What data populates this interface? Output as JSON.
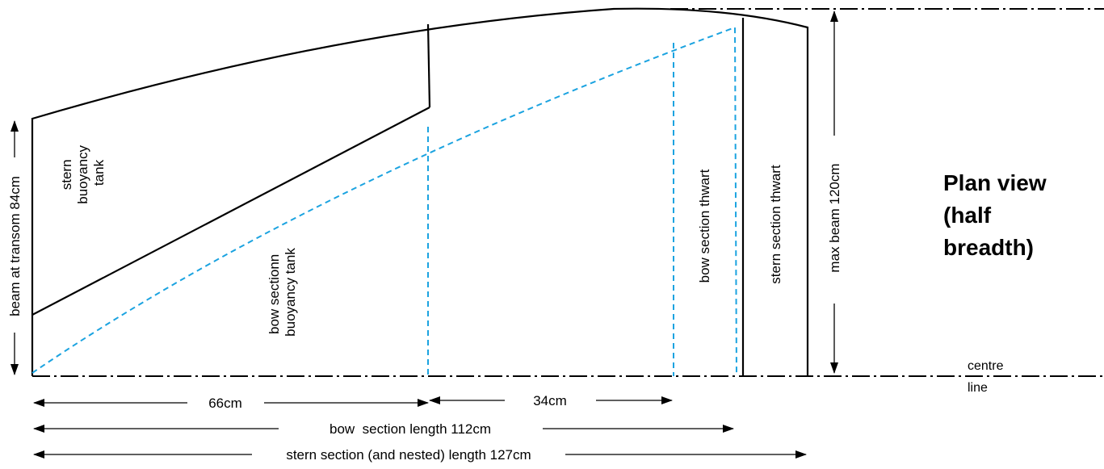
{
  "diagram": {
    "title_lines": [
      "Plan view",
      "(half",
      "breadth)"
    ],
    "labels": {
      "stern_tank": [
        "stern",
        "buoyancy",
        "tank"
      ],
      "bow_tank": [
        "bow sectionn",
        "buoyancy tank"
      ],
      "bow_thwart": "bow section thwart",
      "stern_thwart": "stern section thwart",
      "beam_transom": "beam at transom 84cm",
      "max_beam": "max beam 120cm",
      "centre_line": [
        "centre",
        "line"
      ]
    },
    "dimensions": {
      "d66": "66cm",
      "d34": "34cm",
      "bow_length": "bow  section length 112cm",
      "stern_length": "stern section (and nested) length 127cm"
    },
    "colors": {
      "outline": "#000000",
      "bow_section": "#1ba3e0"
    }
  }
}
